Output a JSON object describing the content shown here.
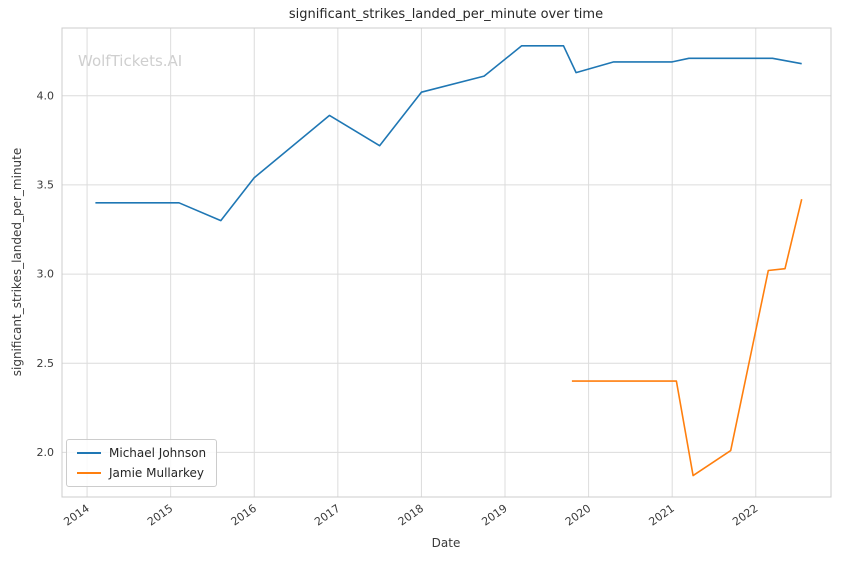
{
  "watermark": "WolfTickets.AI",
  "chart_data": {
    "type": "line",
    "title": "significant_strikes_landed_per_minute over time",
    "xlabel": "Date",
    "ylabel": "significant_strikes_landed_per_minute",
    "xlim": [
      2013.7,
      2022.9
    ],
    "ylim": [
      1.75,
      4.38
    ],
    "xticks": [
      2014,
      2015,
      2016,
      2017,
      2018,
      2019,
      2020,
      2021,
      2022
    ],
    "yticks": [
      2.0,
      2.5,
      3.0,
      3.5,
      4.0
    ],
    "grid": true,
    "grid_color": "#dcdcdc",
    "border_color": "#cccccc",
    "legend_position": "lower left",
    "series": [
      {
        "name": "Michael Johnson",
        "color": "#1f77b4",
        "x": [
          2014.1,
          2015.1,
          2015.6,
          2016.0,
          2016.9,
          2017.5,
          2018.0,
          2018.75,
          2019.2,
          2019.7,
          2019.85,
          2020.3,
          2021.0,
          2021.2,
          2022.2,
          2022.55
        ],
        "y": [
          3.4,
          3.4,
          3.3,
          3.54,
          3.89,
          3.72,
          4.02,
          4.11,
          4.28,
          4.28,
          4.13,
          4.19,
          4.19,
          4.21,
          4.21,
          4.18
        ]
      },
      {
        "name": "Jamie Mullarkey",
        "color": "#ff7f0e",
        "x": [
          2019.8,
          2021.05,
          2021.25,
          2021.7,
          2022.15,
          2022.35,
          2022.55
        ],
        "y": [
          2.4,
          2.4,
          1.87,
          2.01,
          3.02,
          3.03,
          3.42
        ]
      }
    ]
  }
}
